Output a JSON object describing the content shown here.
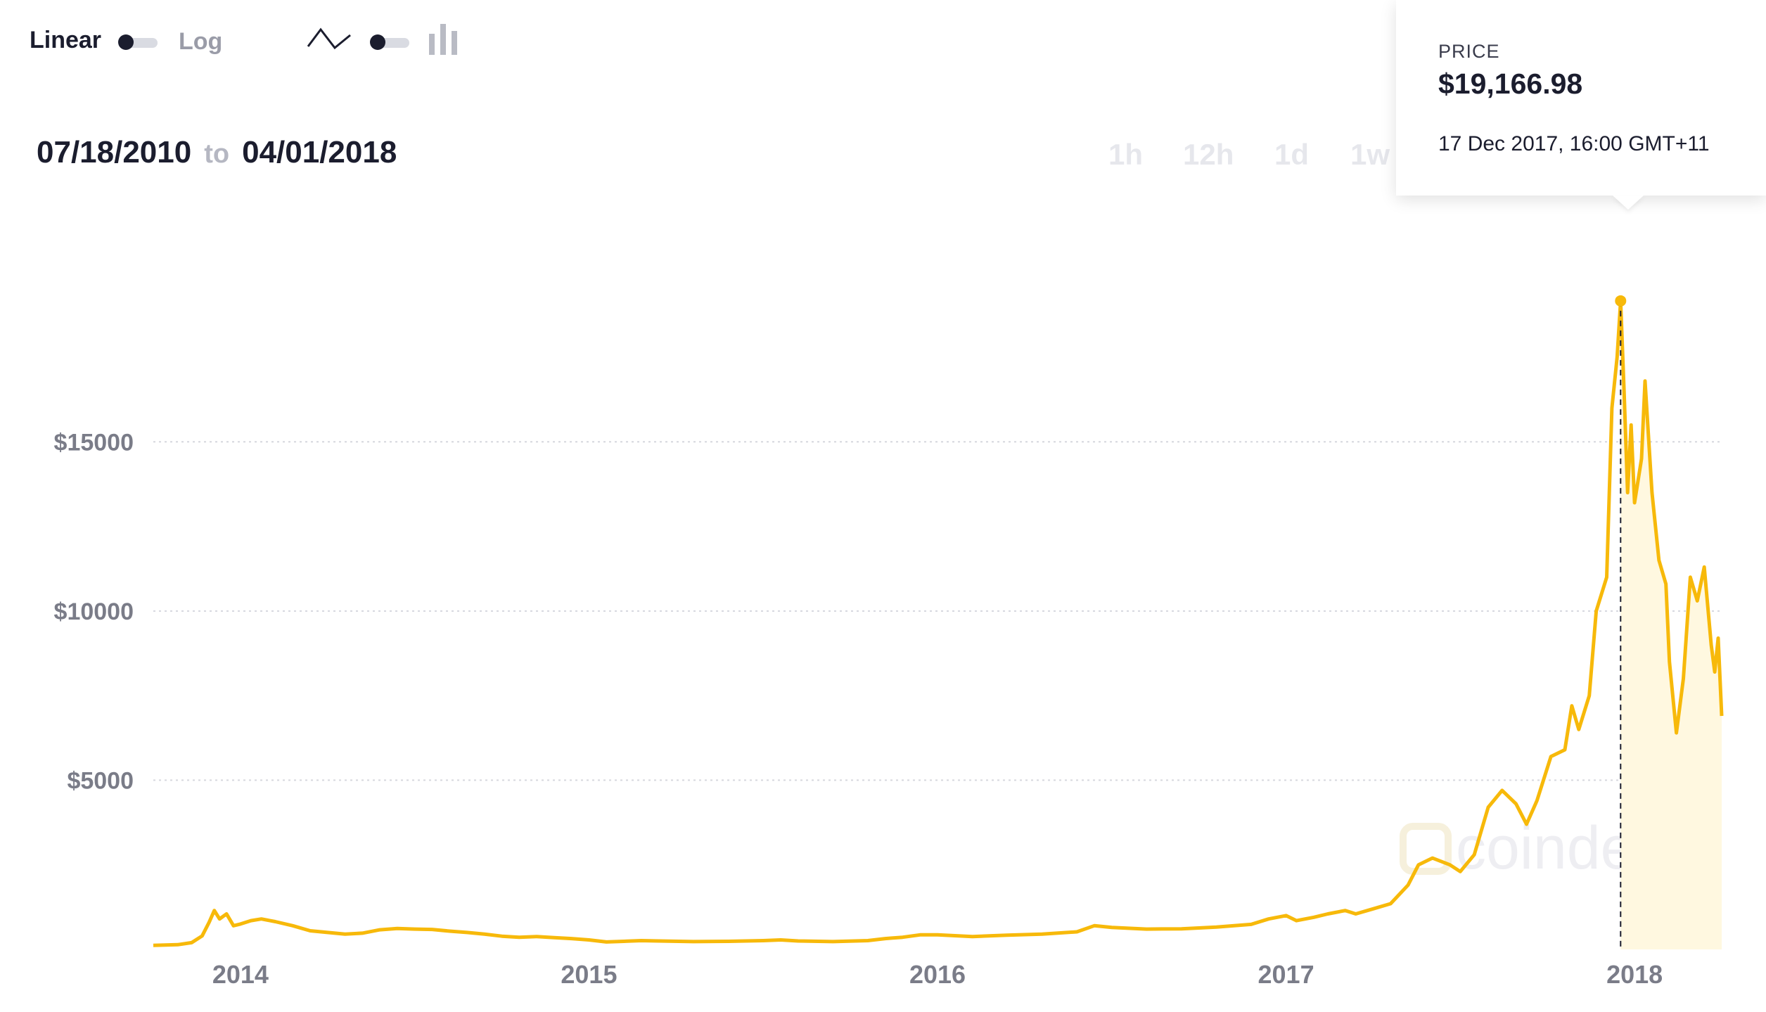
{
  "toolbar": {
    "scale_linear_label": "Linear",
    "scale_log_label": "Log",
    "line_chart_icon": "line-chart-icon",
    "candlestick_icon": "candlestick-icon"
  },
  "date_range": {
    "start": "07/18/2010",
    "separator": "to",
    "end": "04/01/2018"
  },
  "intervals": [
    "1h",
    "12h",
    "1d",
    "1w"
  ],
  "tooltip": {
    "label": "PRICE",
    "price": "$19,166.98",
    "date": "17 Dec 2017, 16:00 GMT+11"
  },
  "watermark": "coindesk",
  "colors": {
    "line": "#f7b90a",
    "area": "#fff8e0",
    "text_dark": "#1b1d2e",
    "axis_text": "#7a7c88"
  },
  "chart_data": {
    "type": "line",
    "title": "",
    "xlabel": "",
    "ylabel": "",
    "ylim": [
      0,
      21200
    ],
    "xlim": [
      2013.75,
      2018.25
    ],
    "y_ticks": [
      {
        "value": 5000,
        "label": "$5000"
      },
      {
        "value": 10000,
        "label": "$10000"
      },
      {
        "value": 15000,
        "label": "$15000"
      }
    ],
    "x_ticks": [
      {
        "value": 2014,
        "label": "2014"
      },
      {
        "value": 2015,
        "label": "2015"
      },
      {
        "value": 2016,
        "label": "2016"
      },
      {
        "value": 2017,
        "label": "2017"
      },
      {
        "value": 2018,
        "label": "2018"
      }
    ],
    "grid": "horizontal dotted",
    "highlight": {
      "x": 2017.96,
      "y": 19166.98
    },
    "series": [
      {
        "points": [
          [
            2013.75,
            120
          ],
          [
            2013.82,
            140
          ],
          [
            2013.86,
            200
          ],
          [
            2013.89,
            400
          ],
          [
            2013.91,
            800
          ],
          [
            2013.925,
            1150
          ],
          [
            2013.94,
            900
          ],
          [
            2013.96,
            1050
          ],
          [
            2013.98,
            700
          ],
          [
            2014.0,
            750
          ],
          [
            2014.03,
            850
          ],
          [
            2014.06,
            900
          ],
          [
            2014.1,
            820
          ],
          [
            2014.15,
            700
          ],
          [
            2014.2,
            550
          ],
          [
            2014.25,
            500
          ],
          [
            2014.3,
            450
          ],
          [
            2014.35,
            480
          ],
          [
            2014.4,
            580
          ],
          [
            2014.45,
            620
          ],
          [
            2014.5,
            600
          ],
          [
            2014.55,
            590
          ],
          [
            2014.6,
            540
          ],
          [
            2014.65,
            500
          ],
          [
            2014.7,
            450
          ],
          [
            2014.75,
            390
          ],
          [
            2014.8,
            360
          ],
          [
            2014.85,
            380
          ],
          [
            2014.9,
            350
          ],
          [
            2014.95,
            320
          ],
          [
            2015.0,
            280
          ],
          [
            2015.05,
            220
          ],
          [
            2015.1,
            240
          ],
          [
            2015.15,
            260
          ],
          [
            2015.2,
            250
          ],
          [
            2015.3,
            230
          ],
          [
            2015.4,
            240
          ],
          [
            2015.5,
            260
          ],
          [
            2015.55,
            280
          ],
          [
            2015.6,
            250
          ],
          [
            2015.7,
            230
          ],
          [
            2015.8,
            260
          ],
          [
            2015.85,
            320
          ],
          [
            2015.9,
            360
          ],
          [
            2015.95,
            430
          ],
          [
            2016.0,
            430
          ],
          [
            2016.1,
            380
          ],
          [
            2016.2,
            420
          ],
          [
            2016.3,
            450
          ],
          [
            2016.4,
            520
          ],
          [
            2016.45,
            700
          ],
          [
            2016.5,
            650
          ],
          [
            2016.6,
            600
          ],
          [
            2016.7,
            610
          ],
          [
            2016.8,
            660
          ],
          [
            2016.9,
            740
          ],
          [
            2016.95,
            900
          ],
          [
            2017.0,
            1000
          ],
          [
            2017.03,
            850
          ],
          [
            2017.08,
            950
          ],
          [
            2017.12,
            1050
          ],
          [
            2017.17,
            1150
          ],
          [
            2017.2,
            1050
          ],
          [
            2017.25,
            1200
          ],
          [
            2017.3,
            1350
          ],
          [
            2017.35,
            1900
          ],
          [
            2017.38,
            2500
          ],
          [
            2017.42,
            2700
          ],
          [
            2017.47,
            2500
          ],
          [
            2017.5,
            2300
          ],
          [
            2017.54,
            2800
          ],
          [
            2017.58,
            4200
          ],
          [
            2017.62,
            4700
          ],
          [
            2017.66,
            4300
          ],
          [
            2017.69,
            3700
          ],
          [
            2017.72,
            4400
          ],
          [
            2017.76,
            5700
          ],
          [
            2017.8,
            5900
          ],
          [
            2017.82,
            7200
          ],
          [
            2017.84,
            6500
          ],
          [
            2017.87,
            7500
          ],
          [
            2017.89,
            10000
          ],
          [
            2017.92,
            11000
          ],
          [
            2017.935,
            16000
          ],
          [
            2017.95,
            17500
          ],
          [
            2017.96,
            19166.98
          ],
          [
            2017.97,
            16500
          ],
          [
            2017.98,
            13500
          ],
          [
            2017.99,
            15500
          ],
          [
            2018.0,
            13200
          ],
          [
            2018.02,
            14500
          ],
          [
            2018.03,
            16800
          ],
          [
            2018.05,
            13500
          ],
          [
            2018.07,
            11500
          ],
          [
            2018.09,
            10800
          ],
          [
            2018.1,
            8500
          ],
          [
            2018.12,
            6400
          ],
          [
            2018.14,
            8000
          ],
          [
            2018.16,
            11000
          ],
          [
            2018.18,
            10300
          ],
          [
            2018.2,
            11300
          ],
          [
            2018.22,
            9000
          ],
          [
            2018.23,
            8200
          ],
          [
            2018.24,
            9200
          ],
          [
            2018.25,
            6900
          ]
        ]
      }
    ]
  }
}
